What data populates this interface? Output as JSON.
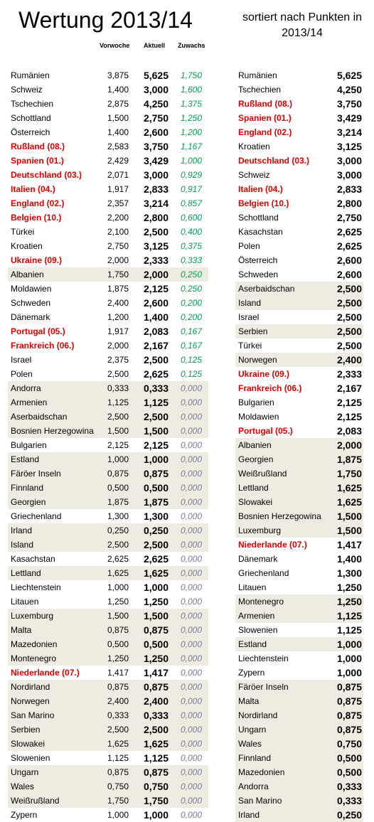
{
  "header": {
    "title": "Wertung 2013/14",
    "subtitle": "sortiert nach Punkten in 2013/14",
    "col_vorwoche": "Vorwoche",
    "col_aktuell": "Aktuell",
    "col_zuwachs": "Zuwachs"
  },
  "colors": {
    "highlight_row": "#eeece1",
    "red_text": "#e00000",
    "green_gain": "#00a050",
    "grey_zero": "#7a7a9a"
  },
  "left_table": [
    {
      "name": "Rumänien",
      "vor": "3,875",
      "akt": "5,625",
      "zu": "1,750",
      "red": false,
      "hl": false
    },
    {
      "name": "Schweiz",
      "vor": "1,400",
      "akt": "3,000",
      "zu": "1,600",
      "red": false,
      "hl": false
    },
    {
      "name": "Tschechien",
      "vor": "2,875",
      "akt": "4,250",
      "zu": "1,375",
      "red": false,
      "hl": false
    },
    {
      "name": "Schottland",
      "vor": "1,500",
      "akt": "2,750",
      "zu": "1,250",
      "red": false,
      "hl": false
    },
    {
      "name": "Österreich",
      "vor": "1,400",
      "akt": "2,600",
      "zu": "1,200",
      "red": false,
      "hl": false
    },
    {
      "name": "Rußland (08.)",
      "vor": "2,583",
      "akt": "3,750",
      "zu": "1,167",
      "red": true,
      "hl": false
    },
    {
      "name": "Spanien (01.)",
      "vor": "2,429",
      "akt": "3,429",
      "zu": "1,000",
      "red": true,
      "hl": false
    },
    {
      "name": "Deutschland (03.)",
      "vor": "2,071",
      "akt": "3,000",
      "zu": "0,929",
      "red": true,
      "hl": false
    },
    {
      "name": "Italien (04.)",
      "vor": "1,917",
      "akt": "2,833",
      "zu": "0,917",
      "red": true,
      "hl": false
    },
    {
      "name": "England (02.)",
      "vor": "2,357",
      "akt": "3,214",
      "zu": "0,857",
      "red": true,
      "hl": false
    },
    {
      "name": "Belgien (10.)",
      "vor": "2,200",
      "akt": "2,800",
      "zu": "0,600",
      "red": true,
      "hl": false
    },
    {
      "name": "Türkei",
      "vor": "2,100",
      "akt": "2,500",
      "zu": "0,400",
      "red": false,
      "hl": false
    },
    {
      "name": "Kroatien",
      "vor": "2,750",
      "akt": "3,125",
      "zu": "0,375",
      "red": false,
      "hl": false
    },
    {
      "name": "Ukraine (09.)",
      "vor": "2,000",
      "akt": "2,333",
      "zu": "0,333",
      "red": true,
      "hl": false
    },
    {
      "name": "Albanien",
      "vor": "1,750",
      "akt": "2,000",
      "zu": "0,250",
      "red": false,
      "hl": true
    },
    {
      "name": "Moldawien",
      "vor": "1,875",
      "akt": "2,125",
      "zu": "0,250",
      "red": false,
      "hl": false
    },
    {
      "name": "Schweden",
      "vor": "2,400",
      "akt": "2,600",
      "zu": "0,200",
      "red": false,
      "hl": false
    },
    {
      "name": "Dänemark",
      "vor": "1,200",
      "akt": "1,400",
      "zu": "0,200",
      "red": false,
      "hl": false
    },
    {
      "name": "Portugal (05.)",
      "vor": "1,917",
      "akt": "2,083",
      "zu": "0,167",
      "red": true,
      "hl": false
    },
    {
      "name": "Frankreich (06.)",
      "vor": "2,000",
      "akt": "2,167",
      "zu": "0,167",
      "red": true,
      "hl": false
    },
    {
      "name": "Israel",
      "vor": "2,375",
      "akt": "2,500",
      "zu": "0,125",
      "red": false,
      "hl": false
    },
    {
      "name": "Polen",
      "vor": "2,500",
      "akt": "2,625",
      "zu": "0,125",
      "red": false,
      "hl": false
    },
    {
      "name": "Andorra",
      "vor": "0,333",
      "akt": "0,333",
      "zu": "0,000",
      "red": false,
      "hl": true
    },
    {
      "name": "Armenien",
      "vor": "1,125",
      "akt": "1,125",
      "zu": "0,000",
      "red": false,
      "hl": true
    },
    {
      "name": "Aserbaidschan",
      "vor": "2,500",
      "akt": "2,500",
      "zu": "0,000",
      "red": false,
      "hl": true
    },
    {
      "name": "Bosnien Herzegowina",
      "vor": "1,500",
      "akt": "1,500",
      "zu": "0,000",
      "red": false,
      "hl": true
    },
    {
      "name": "Bulgarien",
      "vor": "2,125",
      "akt": "2,125",
      "zu": "0,000",
      "red": false,
      "hl": false
    },
    {
      "name": "Estland",
      "vor": "1,000",
      "akt": "1,000",
      "zu": "0,000",
      "red": false,
      "hl": true
    },
    {
      "name": "Färöer Inseln",
      "vor": "0,875",
      "akt": "0,875",
      "zu": "0,000",
      "red": false,
      "hl": true
    },
    {
      "name": "Finnland",
      "vor": "0,500",
      "akt": "0,500",
      "zu": "0,000",
      "red": false,
      "hl": true
    },
    {
      "name": "Georgien",
      "vor": "1,875",
      "akt": "1,875",
      "zu": "0,000",
      "red": false,
      "hl": true
    },
    {
      "name": "Griechenland",
      "vor": "1,300",
      "akt": "1,300",
      "zu": "0,000",
      "red": false,
      "hl": false
    },
    {
      "name": "Irland",
      "vor": "0,250",
      "akt": "0,250",
      "zu": "0,000",
      "red": false,
      "hl": true
    },
    {
      "name": "Island",
      "vor": "2,500",
      "akt": "2,500",
      "zu": "0,000",
      "red": false,
      "hl": true
    },
    {
      "name": "Kasachstan",
      "vor": "2,625",
      "akt": "2,625",
      "zu": "0,000",
      "red": false,
      "hl": false
    },
    {
      "name": "Lettland",
      "vor": "1,625",
      "akt": "1,625",
      "zu": "0,000",
      "red": false,
      "hl": true
    },
    {
      "name": "Liechtenstein",
      "vor": "1,000",
      "akt": "1,000",
      "zu": "0,000",
      "red": false,
      "hl": false
    },
    {
      "name": "Litauen",
      "vor": "1,250",
      "akt": "1,250",
      "zu": "0,000",
      "red": false,
      "hl": false
    },
    {
      "name": "Luxemburg",
      "vor": "1,500",
      "akt": "1,500",
      "zu": "0,000",
      "red": false,
      "hl": true
    },
    {
      "name": "Malta",
      "vor": "0,875",
      "akt": "0,875",
      "zu": "0,000",
      "red": false,
      "hl": true
    },
    {
      "name": "Mazedonien",
      "vor": "0,500",
      "akt": "0,500",
      "zu": "0,000",
      "red": false,
      "hl": true
    },
    {
      "name": "Montenegro",
      "vor": "1,250",
      "akt": "1,250",
      "zu": "0,000",
      "red": false,
      "hl": true
    },
    {
      "name": "Niederlande (07.)",
      "vor": "1,417",
      "akt": "1,417",
      "zu": "0,000",
      "red": true,
      "hl": false
    },
    {
      "name": "Nordirland",
      "vor": "0,875",
      "akt": "0,875",
      "zu": "0,000",
      "red": false,
      "hl": true
    },
    {
      "name": "Norwegen",
      "vor": "2,400",
      "akt": "2,400",
      "zu": "0,000",
      "red": false,
      "hl": true
    },
    {
      "name": "San Marino",
      "vor": "0,333",
      "akt": "0,333",
      "zu": "0,000",
      "red": false,
      "hl": true
    },
    {
      "name": "Serbien",
      "vor": "2,500",
      "akt": "2,500",
      "zu": "0,000",
      "red": false,
      "hl": true
    },
    {
      "name": "Slowakei",
      "vor": "1,625",
      "akt": "1,625",
      "zu": "0,000",
      "red": false,
      "hl": true
    },
    {
      "name": "Slowenien",
      "vor": "1,125",
      "akt": "1,125",
      "zu": "0,000",
      "red": false,
      "hl": false
    },
    {
      "name": "Ungarn",
      "vor": "0,875",
      "akt": "0,875",
      "zu": "0,000",
      "red": false,
      "hl": true
    },
    {
      "name": "Wales",
      "vor": "0,750",
      "akt": "0,750",
      "zu": "0,000",
      "red": false,
      "hl": true
    },
    {
      "name": "Weißrußland",
      "vor": "1,750",
      "akt": "1,750",
      "zu": "0,000",
      "red": false,
      "hl": true
    },
    {
      "name": "Zypern",
      "vor": "1,000",
      "akt": "1,000",
      "zu": "0,000",
      "red": false,
      "hl": false
    }
  ],
  "right_table": [
    {
      "name": "Rumänien",
      "akt": "5,625",
      "red": false,
      "hl": false
    },
    {
      "name": "Tschechien",
      "akt": "4,250",
      "red": false,
      "hl": false
    },
    {
      "name": "Rußland (08.)",
      "akt": "3,750",
      "red": true,
      "hl": false
    },
    {
      "name": "Spanien (01.)",
      "akt": "3,429",
      "red": true,
      "hl": false
    },
    {
      "name": "England (02.)",
      "akt": "3,214",
      "red": true,
      "hl": false
    },
    {
      "name": "Kroatien",
      "akt": "3,125",
      "red": false,
      "hl": false
    },
    {
      "name": "Deutschland (03.)",
      "akt": "3,000",
      "red": true,
      "hl": false
    },
    {
      "name": "Schweiz",
      "akt": "3,000",
      "red": false,
      "hl": false
    },
    {
      "name": "Italien (04.)",
      "akt": "2,833",
      "red": true,
      "hl": false
    },
    {
      "name": "Belgien (10.)",
      "akt": "2,800",
      "red": true,
      "hl": false
    },
    {
      "name": "Schottland",
      "akt": "2,750",
      "red": false,
      "hl": false
    },
    {
      "name": "Kasachstan",
      "akt": "2,625",
      "red": false,
      "hl": false
    },
    {
      "name": "Polen",
      "akt": "2,625",
      "red": false,
      "hl": false
    },
    {
      "name": "Österreich",
      "akt": "2,600",
      "red": false,
      "hl": false
    },
    {
      "name": "Schweden",
      "akt": "2,600",
      "red": false,
      "hl": false
    },
    {
      "name": "Aserbaidschan",
      "akt": "2,500",
      "red": false,
      "hl": true
    },
    {
      "name": "Island",
      "akt": "2,500",
      "red": false,
      "hl": true
    },
    {
      "name": "Israel",
      "akt": "2,500",
      "red": false,
      "hl": false
    },
    {
      "name": "Serbien",
      "akt": "2,500",
      "red": false,
      "hl": true
    },
    {
      "name": "Türkei",
      "akt": "2,500",
      "red": false,
      "hl": false
    },
    {
      "name": "Norwegen",
      "akt": "2,400",
      "red": false,
      "hl": true
    },
    {
      "name": "Ukraine (09.)",
      "akt": "2,333",
      "red": true,
      "hl": false
    },
    {
      "name": "Frankreich (06.)",
      "akt": "2,167",
      "red": true,
      "hl": false
    },
    {
      "name": "Bulgarien",
      "akt": "2,125",
      "red": false,
      "hl": false
    },
    {
      "name": "Moldawien",
      "akt": "2,125",
      "red": false,
      "hl": false
    },
    {
      "name": "Portugal (05.)",
      "akt": "2,083",
      "red": true,
      "hl": false
    },
    {
      "name": "Albanien",
      "akt": "2,000",
      "red": false,
      "hl": true
    },
    {
      "name": "Georgien",
      "akt": "1,875",
      "red": false,
      "hl": true
    },
    {
      "name": "Weißrußland",
      "akt": "1,750",
      "red": false,
      "hl": true
    },
    {
      "name": "Lettland",
      "akt": "1,625",
      "red": false,
      "hl": true
    },
    {
      "name": "Slowakei",
      "akt": "1,625",
      "red": false,
      "hl": true
    },
    {
      "name": "Bosnien Herzegowina",
      "akt": "1,500",
      "red": false,
      "hl": true
    },
    {
      "name": "Luxemburg",
      "akt": "1,500",
      "red": false,
      "hl": true
    },
    {
      "name": "Niederlande (07.)",
      "akt": "1,417",
      "red": true,
      "hl": false
    },
    {
      "name": "Dänemark",
      "akt": "1,400",
      "red": false,
      "hl": false
    },
    {
      "name": "Griechenland",
      "akt": "1,300",
      "red": false,
      "hl": false
    },
    {
      "name": "Litauen",
      "akt": "1,250",
      "red": false,
      "hl": false
    },
    {
      "name": "Montenegro",
      "akt": "1,250",
      "red": false,
      "hl": true
    },
    {
      "name": "Armenien",
      "akt": "1,125",
      "red": false,
      "hl": true
    },
    {
      "name": "Slowenien",
      "akt": "1,125",
      "red": false,
      "hl": false
    },
    {
      "name": "Estland",
      "akt": "1,000",
      "red": false,
      "hl": true
    },
    {
      "name": "Liechtenstein",
      "akt": "1,000",
      "red": false,
      "hl": false
    },
    {
      "name": "Zypern",
      "akt": "1,000",
      "red": false,
      "hl": false
    },
    {
      "name": "Färöer Inseln",
      "akt": "0,875",
      "red": false,
      "hl": true
    },
    {
      "name": "Malta",
      "akt": "0,875",
      "red": false,
      "hl": true
    },
    {
      "name": "Nordirland",
      "akt": "0,875",
      "red": false,
      "hl": true
    },
    {
      "name": "Ungarn",
      "akt": "0,875",
      "red": false,
      "hl": true
    },
    {
      "name": "Wales",
      "akt": "0,750",
      "red": false,
      "hl": true
    },
    {
      "name": "Finnland",
      "akt": "0,500",
      "red": false,
      "hl": true
    },
    {
      "name": "Mazedonien",
      "akt": "0,500",
      "red": false,
      "hl": true
    },
    {
      "name": "Andorra",
      "akt": "0,333",
      "red": false,
      "hl": true
    },
    {
      "name": "San Marino",
      "akt": "0,333",
      "red": false,
      "hl": true
    },
    {
      "name": "Irland",
      "akt": "0,250",
      "red": false,
      "hl": true
    }
  ]
}
